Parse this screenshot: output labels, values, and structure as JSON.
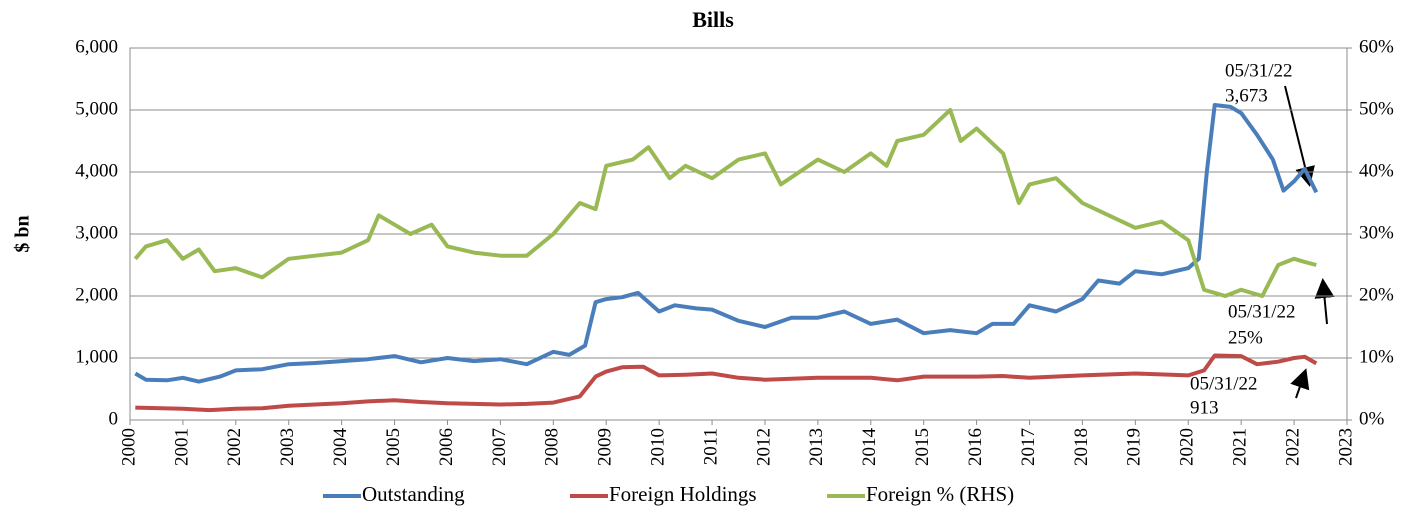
{
  "chart_data": {
    "type": "line",
    "title": "Bills",
    "y_label": "$ bn",
    "xlim": [
      2000,
      2023
    ],
    "xticks": [
      2000,
      2001,
      2002,
      2003,
      2004,
      2005,
      2006,
      2007,
      2008,
      2009,
      2010,
      2011,
      2012,
      2013,
      2014,
      2015,
      2016,
      2017,
      2018,
      2019,
      2020,
      2021,
      2022,
      2023
    ],
    "ylim": [
      0,
      6000
    ],
    "yticks": [
      0,
      {
        "value": 1000,
        "label": "1,000"
      },
      {
        "value": 2000,
        "label": "2,000"
      },
      {
        "value": 3000,
        "label": "3,000"
      },
      {
        "value": 4000,
        "label": "4,000"
      },
      {
        "value": 5000,
        "label": "5,000"
      },
      {
        "value": 6000,
        "label": "6,000"
      }
    ],
    "y2lim": [
      0,
      60
    ],
    "y2ticks": [
      {
        "value": 0,
        "label": "0%"
      },
      {
        "value": 10,
        "label": "10%"
      },
      {
        "value": 20,
        "label": "20%"
      },
      {
        "value": 30,
        "label": "30%"
      },
      {
        "value": 40,
        "label": "40%"
      },
      {
        "value": 50,
        "label": "50%"
      },
      {
        "value": 60,
        "label": "60%"
      }
    ],
    "grid": true,
    "series": [
      {
        "name": "Outstanding",
        "color": "#4a7ebb",
        "x": [
          2000.1,
          2000.3,
          2000.7,
          2001.0,
          2001.3,
          2001.7,
          2002.0,
          2002.5,
          2003.0,
          2003.5,
          2004.0,
          2004.5,
          2005.0,
          2005.5,
          2006.0,
          2006.5,
          2007.0,
          2007.5,
          2008.0,
          2008.3,
          2008.6,
          2008.8,
          2009.0,
          2009.3,
          2009.6,
          2010.0,
          2010.3,
          2010.7,
          2011.0,
          2011.5,
          2012.0,
          2012.5,
          2013.0,
          2013.5,
          2014.0,
          2014.5,
          2015.0,
          2015.5,
          2016.0,
          2016.3,
          2016.7,
          2017.0,
          2017.5,
          2018.0,
          2018.3,
          2018.7,
          2019.0,
          2019.5,
          2020.0,
          2020.2,
          2020.35,
          2020.5,
          2020.8,
          2021.0,
          2021.3,
          2021.6,
          2021.8,
          2022.0,
          2022.2,
          2022.42
        ],
        "values": [
          750,
          650,
          640,
          680,
          620,
          700,
          800,
          820,
          900,
          920,
          950,
          980,
          1030,
          930,
          1000,
          950,
          980,
          900,
          1100,
          1050,
          1200,
          1900,
          1950,
          1980,
          2050,
          1750,
          1850,
          1800,
          1780,
          1600,
          1500,
          1650,
          1650,
          1750,
          1550,
          1620,
          1400,
          1450,
          1400,
          1550,
          1550,
          1850,
          1750,
          1950,
          2250,
          2200,
          2400,
          2350,
          2450,
          2600,
          4000,
          5080,
          5050,
          4950,
          4600,
          4200,
          3700,
          3850,
          4050,
          3673
        ]
      },
      {
        "name": "Foreign Holdings",
        "color": "#be4b48",
        "x": [
          2000.1,
          2001.0,
          2001.5,
          2002.0,
          2002.5,
          2003.0,
          2004.0,
          2004.5,
          2005.0,
          2005.5,
          2006.0,
          2007.0,
          2007.5,
          2008.0,
          2008.5,
          2008.8,
          2009.0,
          2009.3,
          2009.7,
          2010.0,
          2010.5,
          2011.0,
          2011.5,
          2012.0,
          2013.0,
          2014.0,
          2014.5,
          2015.0,
          2016.0,
          2016.5,
          2017.0,
          2018.0,
          2019.0,
          2020.0,
          2020.3,
          2020.5,
          2021.0,
          2021.3,
          2021.7,
          2022.0,
          2022.2,
          2022.42
        ],
        "values": [
          200,
          180,
          160,
          180,
          190,
          230,
          270,
          300,
          320,
          290,
          270,
          250,
          260,
          280,
          380,
          700,
          780,
          850,
          860,
          720,
          730,
          750,
          680,
          650,
          680,
          680,
          640,
          700,
          700,
          710,
          680,
          720,
          750,
          720,
          800,
          1040,
          1030,
          900,
          940,
          1000,
          1020,
          913
        ]
      },
      {
        "name": "Foreign % (RHS)",
        "color": "#98b954",
        "axis": "y2",
        "x": [
          2000.1,
          2000.3,
          2000.7,
          2001.0,
          2001.3,
          2001.6,
          2002.0,
          2002.5,
          2003.0,
          2003.5,
          2004.0,
          2004.5,
          2004.7,
          2005.0,
          2005.3,
          2005.7,
          2006.0,
          2006.5,
          2007.0,
          2007.5,
          2008.0,
          2008.3,
          2008.5,
          2008.8,
          2009.0,
          2009.5,
          2009.8,
          2010.2,
          2010.5,
          2011.0,
          2011.5,
          2012.0,
          2012.3,
          2013.0,
          2013.5,
          2014.0,
          2014.3,
          2014.5,
          2015.0,
          2015.5,
          2015.7,
          2016.0,
          2016.5,
          2016.8,
          2017.0,
          2017.5,
          2018.0,
          2018.5,
          2019.0,
          2019.5,
          2020.0,
          2020.3,
          2020.7,
          2021.0,
          2021.4,
          2021.7,
          2022.0,
          2022.2,
          2022.42
        ],
        "values": [
          26,
          28,
          29,
          26,
          27.5,
          24,
          24.5,
          23,
          26,
          26.5,
          27,
          29,
          33,
          31.5,
          30,
          31.5,
          28,
          27,
          26.5,
          26.5,
          30,
          33,
          35,
          34,
          41,
          42,
          44,
          39,
          41,
          39,
          42,
          43,
          38,
          42,
          40,
          43,
          41,
          45,
          46,
          50,
          45,
          47,
          43,
          35,
          38,
          39,
          35,
          33,
          31,
          32,
          29,
          21,
          20,
          21,
          20,
          25,
          26,
          25.5,
          25
        ]
      }
    ],
    "annotations": [
      [
        "05/31/22",
        "3,673"
      ],
      [
        "05/31/22",
        "25%"
      ],
      [
        "05/31/22",
        "913"
      ]
    ],
    "legend": "bottom"
  }
}
